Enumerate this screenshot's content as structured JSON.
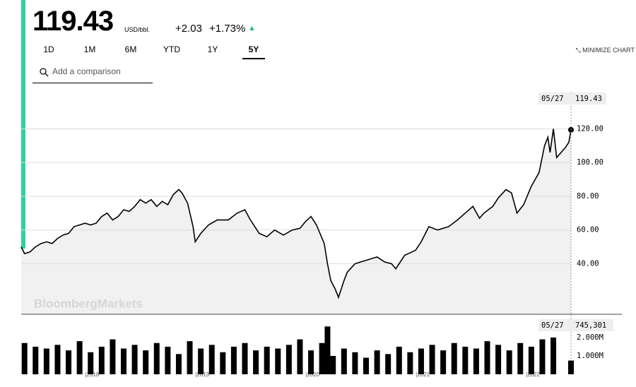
{
  "header": {
    "price": "119.43",
    "unit": "USD/bbl.",
    "change": "+2.03",
    "change_pct": "+1.73%"
  },
  "ranges": [
    "1D",
    "1M",
    "6M",
    "YTD",
    "1Y",
    "5Y"
  ],
  "minimize": "MINIMIZE CHART",
  "search_placeholder": "Add a comparison",
  "watermark": "BloombergMarkets",
  "chart_data": [
    {
      "type": "line",
      "name": "price",
      "color": "#000000",
      "x": [
        2017.42,
        2017.45,
        2017.5,
        2017.55,
        2017.6,
        2017.65,
        2017.7,
        2017.75,
        2017.8,
        2017.85,
        2017.9,
        2017.95,
        2018.0,
        2018.05,
        2018.1,
        2018.15,
        2018.2,
        2018.25,
        2018.3,
        2018.35,
        2018.4,
        2018.45,
        2018.5,
        2018.55,
        2018.6,
        2018.65,
        2018.7,
        2018.75,
        2018.8,
        2018.85,
        2018.88,
        2018.93,
        2018.98,
        2019.0,
        2019.05,
        2019.12,
        2019.2,
        2019.3,
        2019.38,
        2019.45,
        2019.5,
        2019.58,
        2019.65,
        2019.72,
        2019.8,
        2019.88,
        2019.95,
        2020.0,
        2020.05,
        2020.1,
        2020.17,
        2020.2,
        2020.23,
        2020.27,
        2020.3,
        2020.35,
        2020.38,
        2020.45,
        2020.55,
        2020.65,
        2020.72,
        2020.78,
        2020.82,
        2020.9,
        2021.0,
        2021.05,
        2021.12,
        2021.2,
        2021.3,
        2021.38,
        2021.45,
        2021.52,
        2021.58,
        2021.62,
        2021.7,
        2021.75,
        2021.82,
        2021.87,
        2021.92,
        2021.98,
        2022.05,
        2022.12,
        2022.17,
        2022.2,
        2022.22,
        2022.25,
        2022.28,
        2022.32,
        2022.36,
        2022.39,
        2022.41
      ],
      "values": [
        50,
        46,
        47,
        50,
        52,
        53,
        52,
        55,
        57,
        58,
        62,
        63,
        64,
        63,
        64,
        68,
        70,
        66,
        68,
        72,
        71,
        74,
        78,
        76,
        78,
        74,
        77,
        75,
        81,
        84,
        82,
        76,
        62,
        53,
        58,
        63,
        66,
        66,
        70,
        72,
        66,
        58,
        56,
        60,
        57,
        60,
        61,
        65,
        68,
        63,
        52,
        40,
        30,
        25,
        20,
        30,
        35,
        40,
        42,
        44,
        41,
        40,
        37,
        45,
        48,
        53,
        62,
        60,
        62,
        66,
        70,
        74,
        67,
        70,
        74,
        79,
        84,
        82,
        70,
        75,
        86,
        94,
        110,
        115,
        106,
        120,
        103,
        106,
        109,
        112,
        119.43
      ],
      "last_label": "05/27",
      "xlim": [
        2017.42,
        2022.41
      ],
      "ylim": [
        10,
        142
      ],
      "xticks": [
        {
          "value": 2018,
          "label": "|2018"
        },
        {
          "value": 2019,
          "label": "|2019"
        },
        {
          "value": 2020,
          "label": "|2020"
        },
        {
          "value": 2021,
          "label": "|2021"
        },
        {
          "value": 2022,
          "label": "|2022"
        }
      ],
      "yticks": [
        {
          "value": 40,
          "label": "40.00"
        },
        {
          "value": 60,
          "label": "60.00"
        },
        {
          "value": 80,
          "label": "80.00"
        },
        {
          "value": 100,
          "label": "100.00"
        },
        {
          "value": 120,
          "label": "120.00"
        }
      ],
      "grid": true
    },
    {
      "type": "bar",
      "name": "volume",
      "color": "#000000",
      "x": [
        2017.45,
        2017.55,
        2017.65,
        2017.75,
        2017.85,
        2017.95,
        2018.05,
        2018.15,
        2018.25,
        2018.35,
        2018.45,
        2018.55,
        2018.65,
        2018.75,
        2018.85,
        2018.95,
        2019.05,
        2019.15,
        2019.25,
        2019.35,
        2019.45,
        2019.55,
        2019.65,
        2019.75,
        2019.85,
        2019.95,
        2020.05,
        2020.15,
        2020.2,
        2020.25,
        2020.35,
        2020.45,
        2020.55,
        2020.65,
        2020.75,
        2020.85,
        2020.95,
        2021.05,
        2021.15,
        2021.25,
        2021.35,
        2021.45,
        2021.55,
        2021.65,
        2021.75,
        2021.85,
        2021.95,
        2022.05,
        2022.15,
        2022.25,
        2022.41
      ],
      "values": [
        1700000,
        1500000,
        1400000,
        1600000,
        1300000,
        1800000,
        1200000,
        1500000,
        1900000,
        1400000,
        1600000,
        1300000,
        1700000,
        1500000,
        1100000,
        1800000,
        1400000,
        1600000,
        1200000,
        1500000,
        1700000,
        1300000,
        1500000,
        1400000,
        1600000,
        1900000,
        1300000,
        1700000,
        2600000,
        1000000,
        1400000,
        1200000,
        900000,
        1300000,
        1100000,
        1500000,
        1200000,
        1400000,
        1600000,
        1300000,
        1700000,
        1500000,
        1400000,
        1800000,
        1600000,
        1300000,
        1700000,
        1500000,
        1900000,
        2000000,
        745301
      ],
      "value_labels": [
        null,
        null,
        null,
        null,
        null,
        null,
        null,
        null,
        null,
        null,
        null,
        null,
        null,
        null,
        null,
        null,
        null,
        null,
        null,
        null,
        null,
        null,
        null,
        null,
        null,
        null,
        null,
        null,
        null,
        null,
        null,
        null,
        null,
        null,
        null,
        null,
        null,
        null,
        null,
        null,
        null,
        null,
        null,
        null,
        null,
        null,
        null,
        null,
        null,
        null,
        "745,301"
      ],
      "last_label": "05/27",
      "xlim": [
        2017.42,
        2022.41
      ],
      "ylim": [
        0,
        2880000
      ],
      "yticks": [
        {
          "value": 1000000,
          "label": "1.000M"
        },
        {
          "value": 2000000,
          "label": "2.000M"
        }
      ]
    }
  ]
}
